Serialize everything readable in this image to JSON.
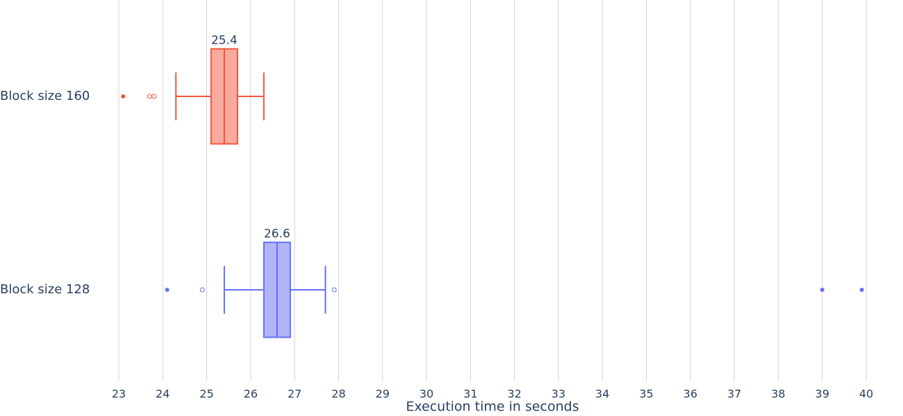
{
  "chart_data": {
    "type": "box",
    "x_label": "Execution time in seconds",
    "xlim": [
      22.5,
      40.3
    ],
    "xticks": [
      23,
      24,
      25,
      26,
      27,
      28,
      29,
      30,
      31,
      32,
      33,
      34,
      35,
      36,
      37,
      38,
      39,
      40
    ],
    "grid": true,
    "series": [
      {
        "name": "Block size 160",
        "color": "#EF553B",
        "lowerfence": 24.3,
        "q1": 25.1,
        "median": 25.4,
        "q3": 25.7,
        "upperfence": 26.3,
        "outliers": [
          23.1
        ],
        "suspected_outliers": [
          23.7,
          23.8
        ]
      },
      {
        "name": "Block size 128",
        "color": "#636EFA",
        "lowerfence": 25.4,
        "q1": 26.3,
        "median": 26.6,
        "q3": 26.9,
        "upperfence": 27.7,
        "outliers": [
          24.1,
          39.0,
          39.9
        ],
        "suspected_outliers": [
          24.9,
          27.9
        ]
      }
    ]
  }
}
